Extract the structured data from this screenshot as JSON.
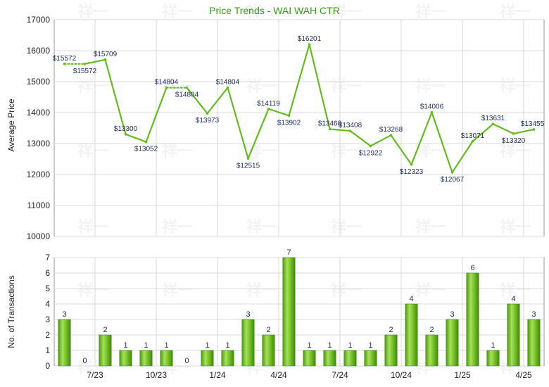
{
  "chart_data": [
    {
      "type": "line",
      "title": "Price Trends - WAI WAH CTR",
      "ylabel": "Average Price",
      "ylim": [
        10000,
        17000
      ],
      "yticks": [
        "10000",
        "11000",
        "12000",
        "13000",
        "14000",
        "15000",
        "16000",
        "17000"
      ],
      "grid": true,
      "series": [
        {
          "values": [
            15572,
            15572,
            15709,
            13300,
            13052,
            14804,
            14804,
            13973,
            14804,
            12515,
            14119,
            13902,
            16201,
            13468,
            13408,
            12922,
            13268,
            12323,
            14006,
            12067,
            13071,
            13631,
            13320,
            13455
          ],
          "labels": [
            "$15572",
            "$15572",
            "$15709",
            "$13300",
            "$13052",
            "$14804",
            "$14804",
            "$13973",
            "$14804",
            "$12515",
            "$14119",
            "$13902",
            "$16201",
            "$13468",
            "$13408",
            "$12922",
            "$13268",
            "$12323",
            "$14006",
            "$12067",
            "$13071",
            "$13631",
            "$13320",
            "$13455"
          ],
          "color": "#66bb1f"
        }
      ]
    },
    {
      "type": "bar",
      "ylabel": "No. of Transactions",
      "ylim": [
        0,
        7
      ],
      "yticks": [
        "0",
        "1",
        "2",
        "3",
        "4",
        "5",
        "6",
        "7"
      ],
      "xticks": [
        "7/23",
        "10/23",
        "1/24",
        "4/24",
        "7/24",
        "10/24",
        "1/25",
        "4/25"
      ],
      "grid": true,
      "values": [
        3,
        0,
        2,
        1,
        1,
        1,
        0,
        1,
        1,
        3,
        2,
        7,
        1,
        1,
        1,
        1,
        2,
        4,
        2,
        3,
        6,
        1,
        4,
        3
      ],
      "labels": [
        "3",
        "0",
        "2",
        "1",
        "1",
        "1",
        "0",
        "1",
        "1",
        "3",
        "2",
        "7",
        "1",
        "1",
        "1",
        "1",
        "2",
        "4",
        "2",
        "3",
        "6",
        "1",
        "4",
        "3"
      ],
      "color": "#6fbf22"
    }
  ],
  "colors": {
    "title": "#3a9a16",
    "line": "#66bb1f",
    "bar": "#6fbf22",
    "label": "#1b2a5a"
  }
}
